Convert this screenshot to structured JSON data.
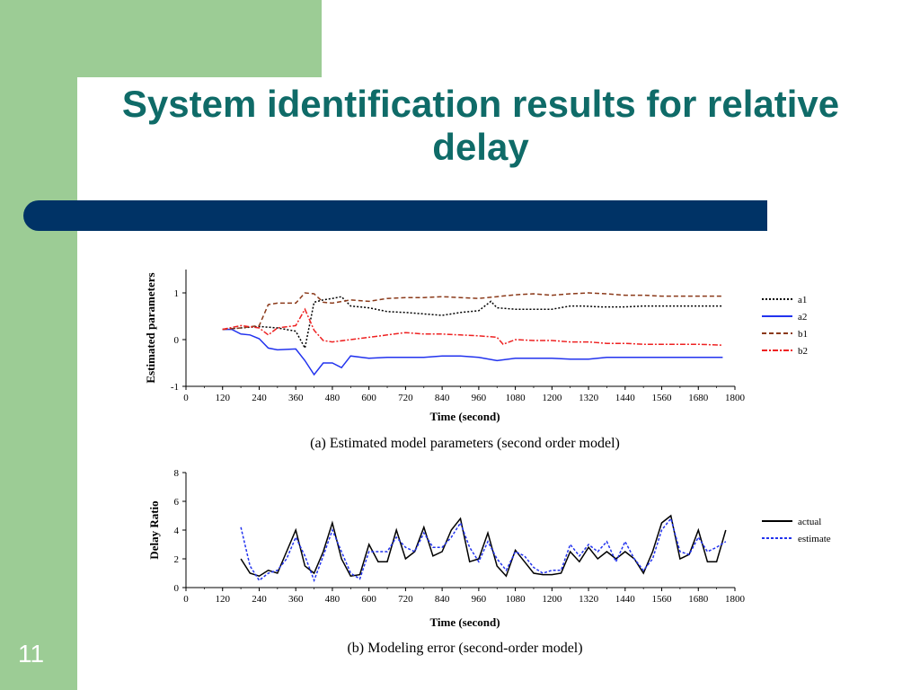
{
  "slide": {
    "title": "System identification results for relative delay",
    "number": "11",
    "colors": {
      "sidebar_green": "#9ccc95",
      "title_teal": "#0f6b68",
      "bar_navy": "#003366"
    }
  },
  "chart_data": [
    {
      "type": "line",
      "caption": "(a) Estimated model parameters (second order model)",
      "xlabel": "Time (second)",
      "ylabel": "Estimated parameters",
      "xlim": [
        0,
        1800
      ],
      "ylim": [
        -1,
        1.5
      ],
      "xticks": [
        0,
        120,
        240,
        360,
        480,
        600,
        720,
        840,
        960,
        1080,
        1200,
        1320,
        1440,
        1560,
        1680,
        1800
      ],
      "yticks": [
        -1,
        0,
        1
      ],
      "legend_position": "right",
      "series": [
        {
          "name": "a1",
          "color": "#000000",
          "dash": "2,2",
          "x": [
            120,
            180,
            240,
            300,
            360,
            390,
            420,
            450,
            480,
            510,
            540,
            600,
            660,
            720,
            780,
            840,
            900,
            960,
            1000,
            1020,
            1080,
            1140,
            1200,
            1260,
            1300,
            1360,
            1440,
            1500,
            1560,
            1620,
            1680,
            1760
          ],
          "y": [
            0.22,
            0.25,
            0.28,
            0.25,
            0.18,
            -0.18,
            0.8,
            0.85,
            0.88,
            0.92,
            0.72,
            0.68,
            0.6,
            0.58,
            0.55,
            0.52,
            0.58,
            0.62,
            0.82,
            0.68,
            0.65,
            0.65,
            0.65,
            0.72,
            0.72,
            0.7,
            0.7,
            0.72,
            0.72,
            0.72,
            0.72,
            0.72
          ]
        },
        {
          "name": "a2",
          "color": "#2233ee",
          "dash": "",
          "x": [
            120,
            150,
            180,
            210,
            240,
            270,
            300,
            360,
            390,
            420,
            450,
            480,
            510,
            540,
            600,
            660,
            720,
            780,
            840,
            900,
            960,
            1020,
            1080,
            1140,
            1200,
            1260,
            1320,
            1380,
            1440,
            1500,
            1560,
            1620,
            1680,
            1760
          ],
          "y": [
            0.22,
            0.22,
            0.12,
            0.1,
            0.02,
            -0.18,
            -0.22,
            -0.2,
            -0.45,
            -0.75,
            -0.5,
            -0.5,
            -0.6,
            -0.35,
            -0.4,
            -0.38,
            -0.38,
            -0.38,
            -0.35,
            -0.35,
            -0.38,
            -0.45,
            -0.4,
            -0.4,
            -0.4,
            -0.42,
            -0.42,
            -0.38,
            -0.38,
            -0.38,
            -0.38,
            -0.38,
            -0.38,
            -0.38
          ]
        },
        {
          "name": "b1",
          "color": "#8b3a1a",
          "dash": "5,3",
          "x": [
            120,
            180,
            240,
            270,
            300,
            360,
            390,
            420,
            450,
            480,
            540,
            600,
            660,
            720,
            780,
            840,
            900,
            960,
            1020,
            1080,
            1140,
            1200,
            1260,
            1320,
            1380,
            1440,
            1500,
            1560,
            1620,
            1680,
            1760
          ],
          "y": [
            0.22,
            0.25,
            0.3,
            0.75,
            0.78,
            0.78,
            1.0,
            0.98,
            0.8,
            0.78,
            0.85,
            0.82,
            0.88,
            0.9,
            0.9,
            0.92,
            0.9,
            0.88,
            0.92,
            0.96,
            0.98,
            0.95,
            0.98,
            1.0,
            0.98,
            0.95,
            0.95,
            0.93,
            0.93,
            0.93,
            0.93
          ]
        },
        {
          "name": "b2",
          "color": "#ee2222",
          "dash": "6,2,2,2",
          "x": [
            120,
            180,
            240,
            270,
            300,
            360,
            390,
            420,
            450,
            480,
            540,
            600,
            660,
            720,
            780,
            840,
            900,
            960,
            1020,
            1040,
            1080,
            1140,
            1200,
            1260,
            1320,
            1380,
            1440,
            1500,
            1560,
            1620,
            1680,
            1760
          ],
          "y": [
            0.22,
            0.3,
            0.25,
            0.1,
            0.25,
            0.3,
            0.65,
            0.2,
            -0.02,
            -0.05,
            0.0,
            0.05,
            0.1,
            0.15,
            0.12,
            0.12,
            0.1,
            0.08,
            0.05,
            -0.1,
            0.0,
            -0.02,
            -0.02,
            -0.05,
            -0.05,
            -0.08,
            -0.08,
            -0.1,
            -0.1,
            -0.1,
            -0.1,
            -0.12
          ]
        }
      ]
    },
    {
      "type": "line",
      "caption": "(b) Modeling error (second-order model)",
      "xlabel": "Time (second)",
      "ylabel": "Delay Ratio",
      "xlim": [
        0,
        1800
      ],
      "ylim": [
        0,
        8
      ],
      "xticks": [
        0,
        120,
        240,
        360,
        480,
        600,
        720,
        840,
        960,
        1080,
        1200,
        1320,
        1440,
        1560,
        1680,
        1800
      ],
      "yticks": [
        0,
        2,
        4,
        6,
        8
      ],
      "legend_position": "right",
      "series": [
        {
          "name": "actual",
          "color": "#000000",
          "dash": "",
          "x": [
            180,
            210,
            240,
            270,
            300,
            330,
            360,
            390,
            420,
            450,
            480,
            510,
            540,
            570,
            600,
            630,
            660,
            690,
            720,
            750,
            780,
            810,
            840,
            870,
            900,
            930,
            960,
            990,
            1020,
            1050,
            1080,
            1110,
            1140,
            1170,
            1200,
            1230,
            1260,
            1290,
            1320,
            1350,
            1380,
            1410,
            1440,
            1470,
            1500,
            1530,
            1560,
            1590,
            1620,
            1650,
            1680,
            1710,
            1740,
            1770
          ],
          "y": [
            2.0,
            1.0,
            0.8,
            1.2,
            1.0,
            2.5,
            4.0,
            1.5,
            1.0,
            2.5,
            4.5,
            2.0,
            0.8,
            0.9,
            3.0,
            1.8,
            1.8,
            4.0,
            2.0,
            2.5,
            4.2,
            2.2,
            2.5,
            4.0,
            4.8,
            1.8,
            2.0,
            3.8,
            1.5,
            0.8,
            2.6,
            1.8,
            1.0,
            0.9,
            0.9,
            1.0,
            2.5,
            1.8,
            2.8,
            2.0,
            2.5,
            2.0,
            2.5,
            2.0,
            1.0,
            2.5,
            4.5,
            5.0,
            2.0,
            2.3,
            4.0,
            1.8,
            1.8,
            4.0
          ]
        },
        {
          "name": "estimate",
          "color": "#2233ee",
          "dash": "3,2",
          "x": [
            180,
            210,
            240,
            270,
            300,
            330,
            360,
            390,
            420,
            450,
            480,
            510,
            540,
            570,
            600,
            630,
            660,
            690,
            720,
            750,
            780,
            810,
            840,
            870,
            900,
            930,
            960,
            990,
            1020,
            1050,
            1080,
            1110,
            1140,
            1170,
            1200,
            1230,
            1260,
            1290,
            1320,
            1350,
            1380,
            1410,
            1440,
            1470,
            1500,
            1530,
            1560,
            1590,
            1620,
            1650,
            1680,
            1710,
            1740,
            1770
          ],
          "y": [
            4.2,
            1.5,
            0.5,
            1.0,
            1.2,
            2.0,
            3.5,
            2.2,
            0.5,
            2.2,
            4.0,
            2.5,
            1.0,
            0.6,
            2.5,
            2.5,
            2.5,
            3.5,
            2.8,
            2.5,
            3.8,
            2.8,
            2.8,
            3.5,
            4.5,
            2.8,
            1.8,
            3.2,
            2.0,
            1.2,
            2.5,
            2.2,
            1.4,
            1.0,
            1.2,
            1.2,
            3.0,
            2.2,
            3.0,
            2.5,
            3.2,
            1.8,
            3.2,
            2.0,
            1.2,
            2.0,
            4.0,
            4.8,
            2.5,
            2.3,
            3.5,
            2.5,
            2.8,
            3.2
          ]
        }
      ]
    }
  ]
}
